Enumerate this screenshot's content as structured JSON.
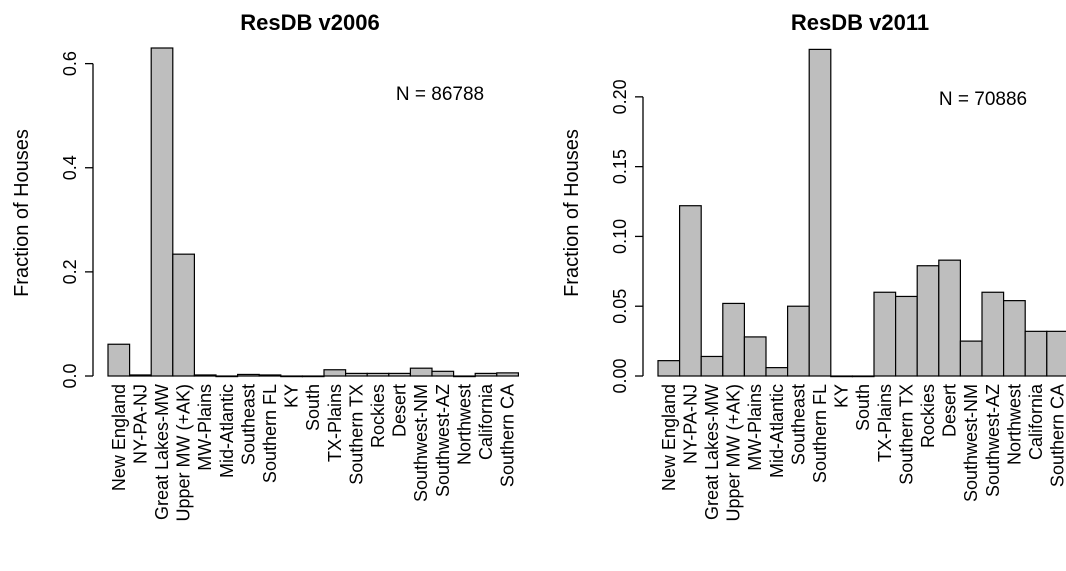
{
  "chart_data": [
    {
      "type": "bar",
      "title": "ResDB v2006",
      "ylabel": "Fraction of Houses",
      "xlabel": "",
      "annotation": "N = 86788",
      "ylim": [
        0,
        0.63
      ],
      "yticks": [
        0.0,
        0.2,
        0.4,
        0.6
      ],
      "ytick_labels": [
        "0.0",
        "0.2",
        "0.4",
        "0.6"
      ],
      "categories": [
        "New England",
        "NY-PA-NJ",
        "Great Lakes-MW",
        "Upper MW (+AK)",
        "MW-Plains",
        "Mid-Atlantic",
        "Southeast",
        "Southern FL",
        "KY",
        "South",
        "TX-Plains",
        "Southern TX",
        "Rockies",
        "Desert",
        "Southwest-NM",
        "Southwest-AZ",
        "Northwest",
        "California",
        "Southern CA"
      ],
      "values": [
        0.061,
        0.002,
        0.63,
        0.234,
        0.002,
        0.0,
        0.003,
        0.002,
        0.0,
        0.0,
        0.012,
        0.005,
        0.005,
        0.005,
        0.015,
        0.009,
        0.0,
        0.005,
        0.006
      ]
    },
    {
      "type": "bar",
      "title": "ResDB v2011",
      "ylabel": "Fraction of Houses",
      "xlabel": "",
      "annotation": "N = 70886",
      "ylim": [
        0,
        0.235
      ],
      "yticks": [
        0.0,
        0.05,
        0.1,
        0.15,
        0.2
      ],
      "ytick_labels": [
        "0.00",
        "0.05",
        "0.10",
        "0.15",
        "0.20"
      ],
      "categories": [
        "New England",
        "NY-PA-NJ",
        "Great Lakes-MW",
        "Upper MW (+AK)",
        "MW-Plains",
        "Mid-Atlantic",
        "Southeast",
        "Southern FL",
        "KY",
        "South",
        "TX-Plains",
        "Southern TX",
        "Rockies",
        "Desert",
        "Southwest-NM",
        "Southwest-AZ",
        "Northwest",
        "California",
        "Southern CA"
      ],
      "values": [
        0.011,
        0.122,
        0.014,
        0.052,
        0.028,
        0.006,
        0.05,
        0.234,
        0.0,
        0.0,
        0.06,
        0.057,
        0.079,
        0.083,
        0.025,
        0.06,
        0.054,
        0.032,
        0.032
      ]
    }
  ]
}
